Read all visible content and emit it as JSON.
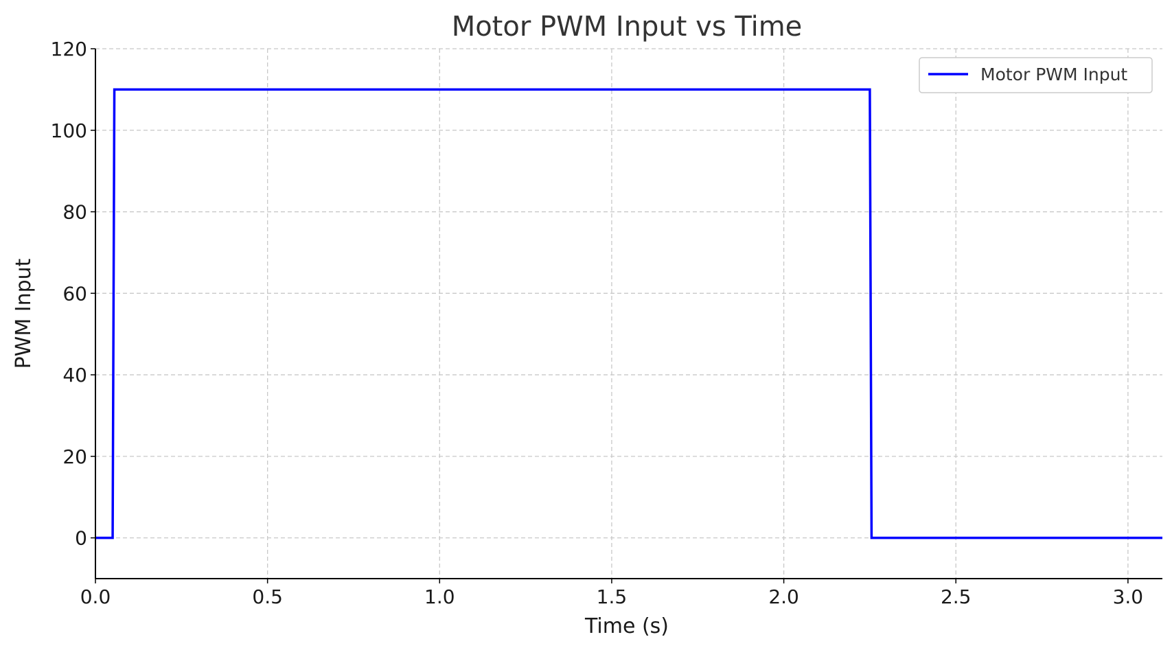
{
  "chart_data": {
    "type": "line",
    "title": "Motor PWM Input vs Time",
    "xlabel": "Time (s)",
    "ylabel": "PWM Input",
    "xlim": [
      0.0,
      3.1
    ],
    "ylim": [
      -10,
      120
    ],
    "xticks": [
      0.0,
      0.5,
      1.0,
      1.5,
      2.0,
      2.5,
      3.0
    ],
    "xtick_labels": [
      "0.0",
      "0.5",
      "1.0",
      "1.5",
      "2.0",
      "2.5",
      "3.0"
    ],
    "yticks": [
      0,
      20,
      40,
      60,
      80,
      100,
      120
    ],
    "ytick_labels": [
      "0",
      "20",
      "40",
      "60",
      "80",
      "100",
      "120"
    ],
    "grid": true,
    "legend_position": "top-right",
    "series": [
      {
        "name": "Motor PWM Input",
        "color": "#0000ff",
        "x": [
          0.0,
          0.05,
          0.055,
          2.25,
          2.255,
          3.1
        ],
        "y": [
          0,
          0,
          110,
          110,
          0,
          0
        ]
      }
    ]
  }
}
